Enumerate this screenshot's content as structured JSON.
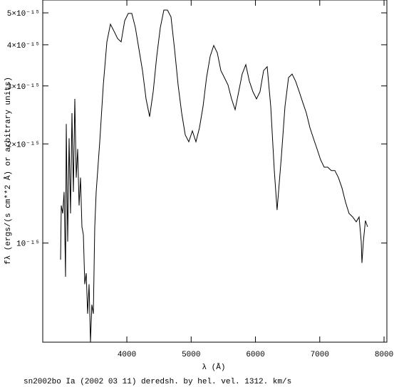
{
  "chart_data": {
    "type": "line",
    "x_label": "λ (Å)",
    "y_label": "fλ (ergs/(s cm**2 Å) or arbitrary units)",
    "caption": "sn2002bo Ia (2002 03 11) deredsh. by hel. vel.  1312. km/s",
    "log_y": true,
    "color": "#000000",
    "xlim": [
      2692,
      8044
    ],
    "ylim": [
      5e-16,
      5.47e-15
    ],
    "xticks": [
      4000,
      5000,
      6000,
      7000,
      8000
    ],
    "yticks": [
      {
        "value": 1e-15,
        "label": "10⁻¹⁵"
      },
      {
        "value": 2e-15,
        "label": "2×10⁻¹⁵"
      },
      {
        "value": 3e-15,
        "label": "3×10⁻¹⁵"
      },
      {
        "value": 4e-15,
        "label": "4×10⁻¹⁵"
      },
      {
        "value": 5e-15,
        "label": "5×10⁻¹⁵"
      }
    ],
    "x": [
      2969,
      2980,
      3002,
      3024,
      3047,
      3058,
      3080,
      3102,
      3124,
      3146,
      3168,
      3191,
      3213,
      3235,
      3257,
      3279,
      3301,
      3324,
      3346,
      3368,
      3390,
      3412,
      3434,
      3456,
      3479,
      3501,
      3523,
      3578,
      3634,
      3689,
      3745,
      3800,
      3855,
      3911,
      3966,
      4022,
      4077,
      4132,
      4188,
      4243,
      4299,
      4354,
      4409,
      4465,
      4520,
      4576,
      4631,
      4686,
      4742,
      4797,
      4853,
      4908,
      4963,
      5019,
      5074,
      5130,
      5185,
      5240,
      5296,
      5351,
      5407,
      5462,
      5517,
      5573,
      5628,
      5684,
      5739,
      5794,
      5850,
      5905,
      5961,
      6016,
      6071,
      6127,
      6182,
      6238,
      6293,
      6337,
      6404,
      6459,
      6515,
      6570,
      6625,
      6681,
      6736,
      6792,
      6847,
      6902,
      6958,
      7013,
      7069,
      7124,
      7179,
      7235,
      7290,
      7346,
      7401,
      7456,
      7512,
      7567,
      7612,
      7645,
      7656,
      7678,
      7711,
      7744
    ],
    "values": [
      8.9e-16,
      1.3e-15,
      1.23e-15,
      1.43e-15,
      7.9e-16,
      2.3e-15,
      1.01e-15,
      2.08e-15,
      1.23e-15,
      2.48e-15,
      1.43e-15,
      2.74e-15,
      1.58e-15,
      1.93e-15,
      1.3e-15,
      1.58e-15,
      1.12e-15,
      1.06e-15,
      7.5e-16,
      8.1e-16,
      6.1e-16,
      7.5e-16,
      5e-16,
      6.5e-16,
      6.1e-16,
      1.12e-15,
      1.43e-15,
      2.03e-15,
      3.02e-15,
      4.08e-15,
      4.62e-15,
      4.4e-15,
      4.18e-15,
      4.08e-15,
      4.73e-15,
      4.98e-15,
      4.98e-15,
      4.51e-15,
      3.88e-15,
      3.34e-15,
      2.74e-15,
      2.42e-15,
      2.88e-15,
      3.69e-15,
      4.51e-15,
      5.1e-15,
      5.1e-15,
      4.86e-15,
      3.88e-15,
      3.02e-15,
      2.48e-15,
      2.13e-15,
      2.03e-15,
      2.19e-15,
      2.03e-15,
      2.24e-15,
      2.6e-15,
      3.18e-15,
      3.69e-15,
      3.98e-15,
      3.78e-15,
      3.34e-15,
      3.18e-15,
      3.02e-15,
      2.74e-15,
      2.54e-15,
      2.88e-15,
      3.26e-15,
      3.48e-15,
      3.1e-15,
      2.88e-15,
      2.74e-15,
      2.88e-15,
      3.34e-15,
      3.43e-15,
      2.6e-15,
      1.66e-15,
      1.26e-15,
      1.84e-15,
      2.6e-15,
      3.18e-15,
      3.26e-15,
      3.1e-15,
      2.88e-15,
      2.67e-15,
      2.48e-15,
      2.24e-15,
      2.08e-15,
      1.93e-15,
      1.79e-15,
      1.7e-15,
      1.7e-15,
      1.66e-15,
      1.66e-15,
      1.58e-15,
      1.47e-15,
      1.33e-15,
      1.23e-15,
      1.2e-15,
      1.16e-15,
      1.2e-15,
      1.01e-15,
      8.7e-16,
      1.01e-15,
      1.17e-15,
      1.12e-15
    ]
  }
}
